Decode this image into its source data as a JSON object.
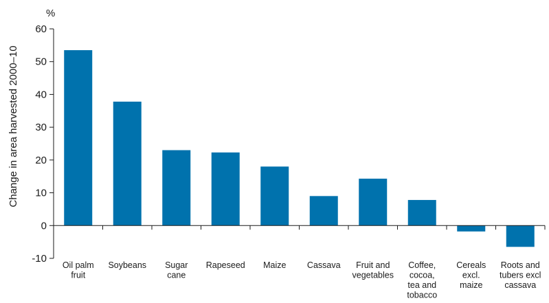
{
  "chart_data": {
    "type": "bar",
    "title": "",
    "unit": "%",
    "ylabel": "Change in area harvested 2000–10",
    "xlabel": "",
    "ylim": [
      -10,
      60
    ],
    "yticks": [
      -10,
      0,
      10,
      20,
      30,
      40,
      50,
      60
    ],
    "grid": false,
    "bar_color": "#0072ad",
    "categories": [
      [
        "Oil palm",
        "fruit"
      ],
      [
        "Soybeans"
      ],
      [
        "Sugar",
        "cane"
      ],
      [
        "Rapeseed"
      ],
      [
        "Maize"
      ],
      [
        "Cassava"
      ],
      [
        "Fruit and",
        "vegetables"
      ],
      [
        "Coffee,",
        "cocoa,",
        "tea and",
        "tobacco"
      ],
      [
        "Cereals",
        "excl.",
        "maize"
      ],
      [
        "Roots and",
        "tubers excl",
        "cassava"
      ]
    ],
    "values": [
      53.5,
      37.8,
      23.0,
      22.3,
      18.0,
      9.0,
      14.3,
      7.8,
      -1.8,
      -6.5
    ]
  }
}
